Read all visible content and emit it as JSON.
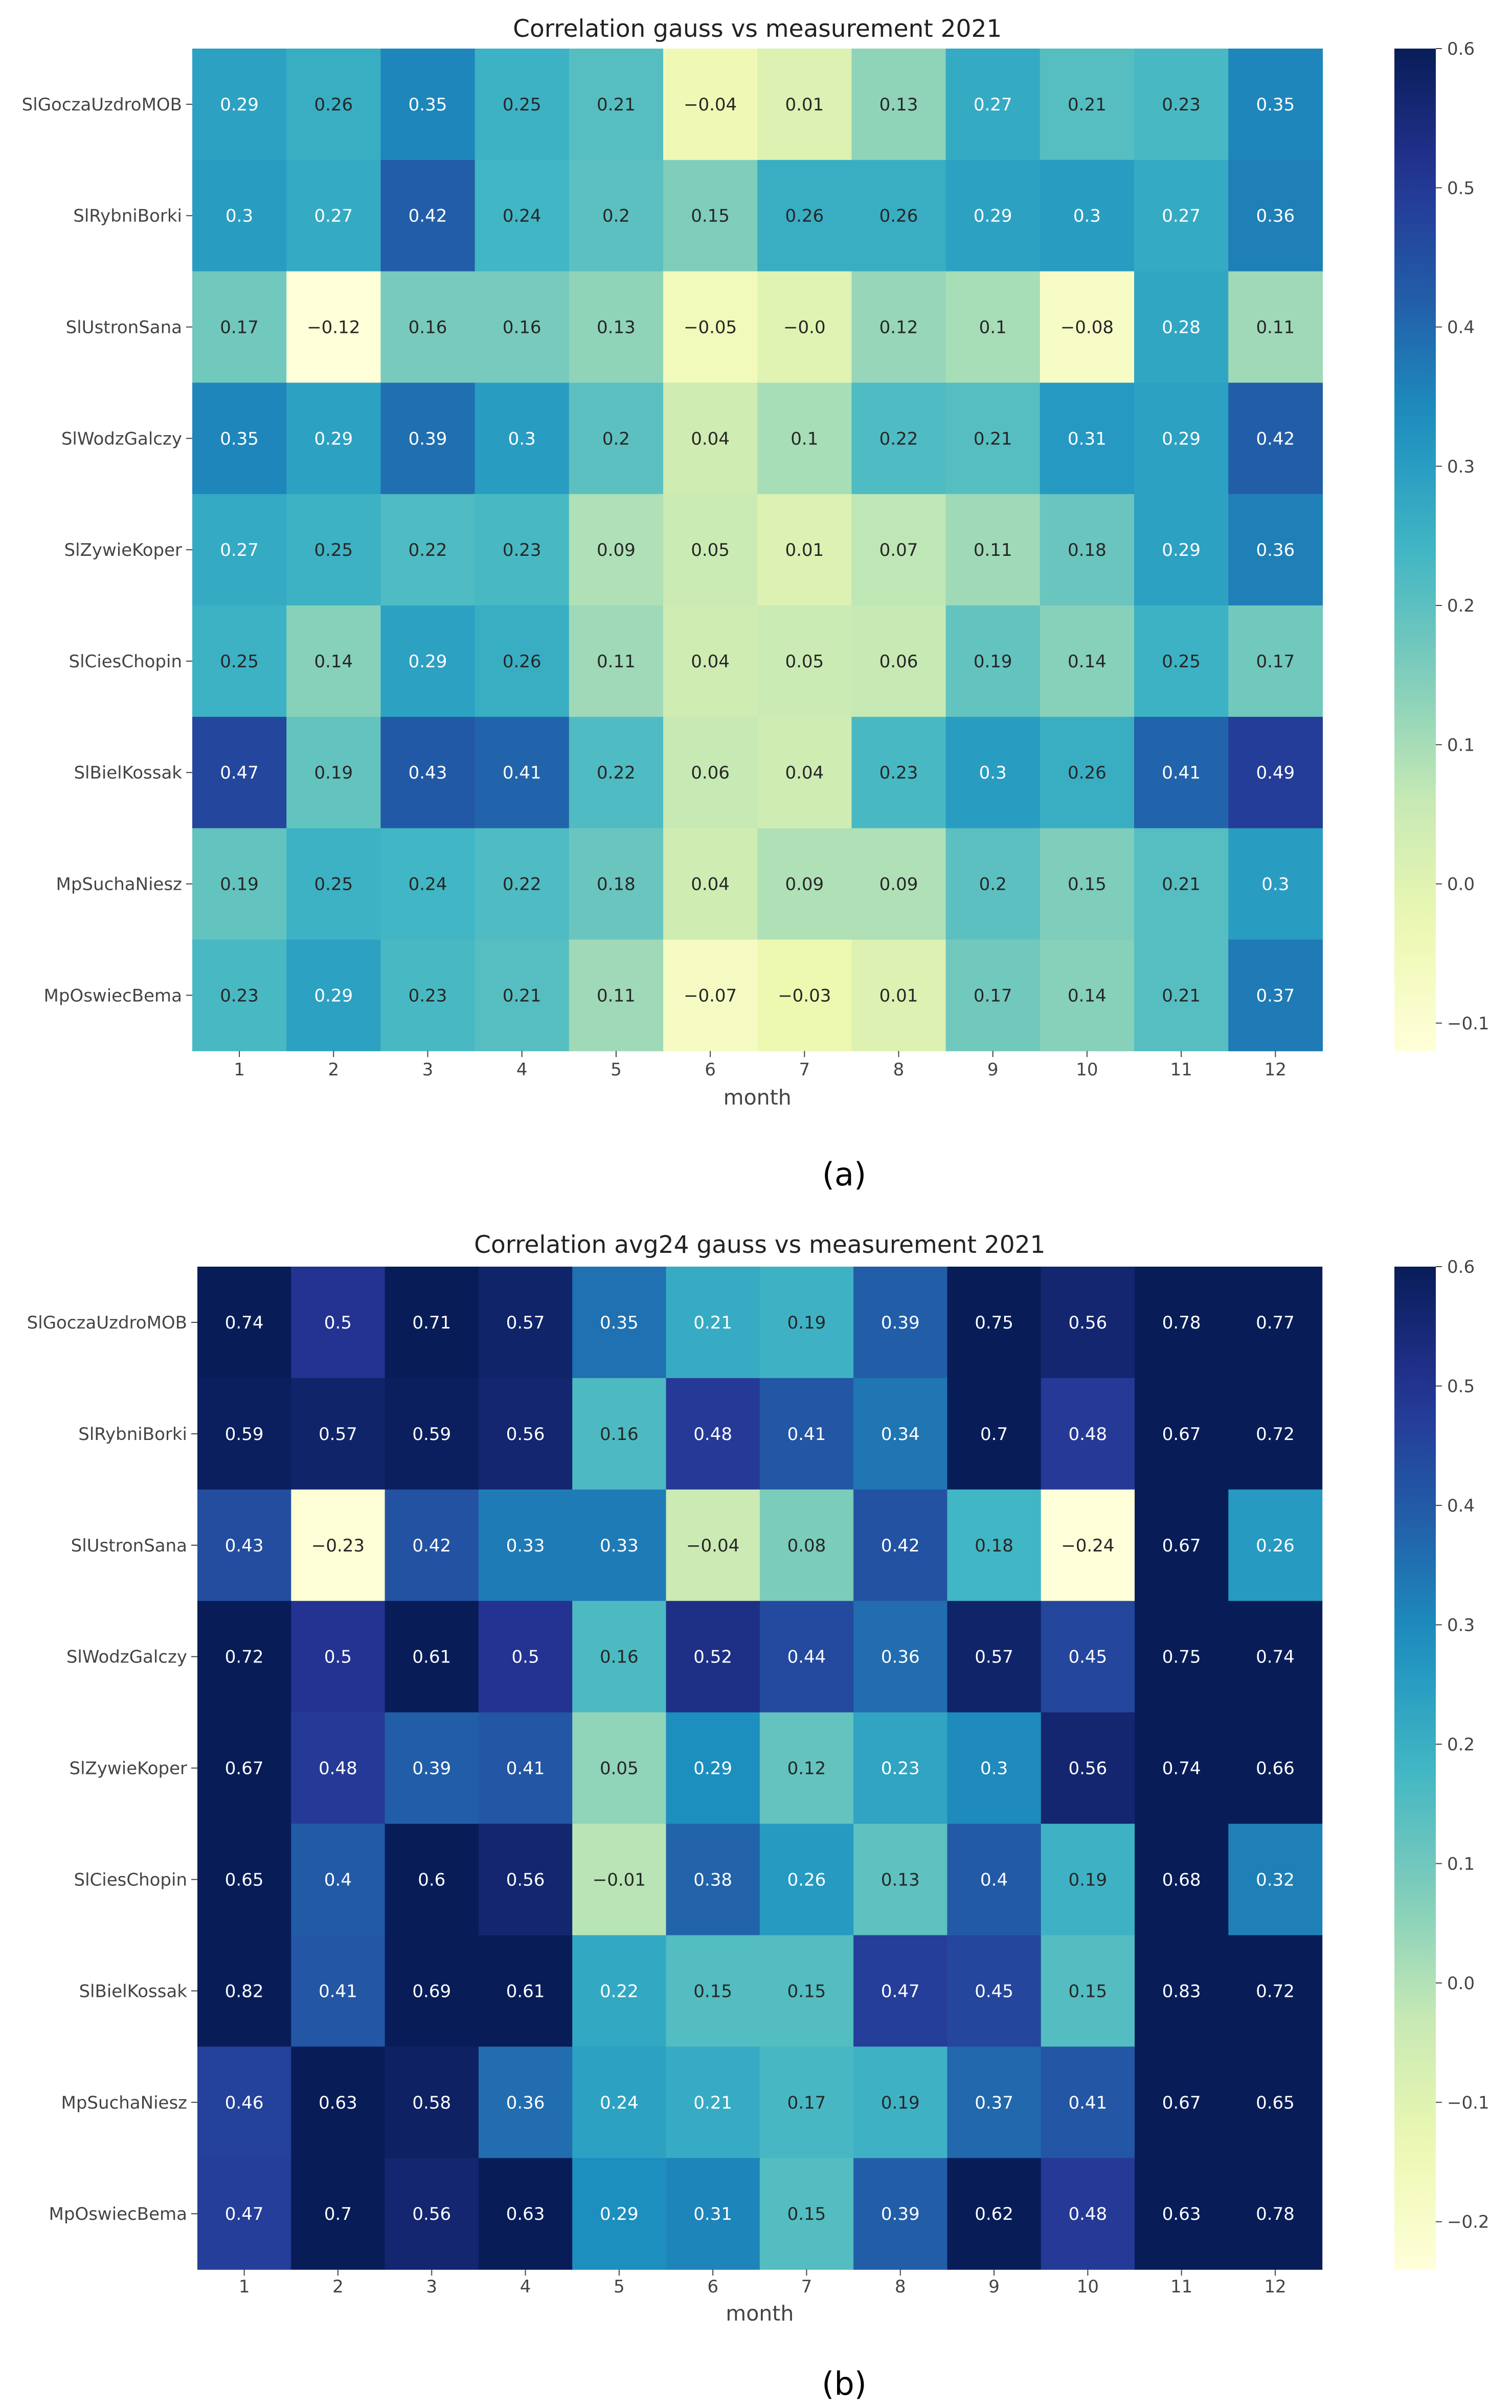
{
  "chart_data": [
    {
      "type": "heatmap",
      "title": "Correlation gauss vs measurement 2021",
      "caption": "(a)",
      "xlabel": "month",
      "ylabel": "",
      "x": [
        "1",
        "2",
        "3",
        "4",
        "5",
        "6",
        "7",
        "8",
        "9",
        "10",
        "11",
        "12"
      ],
      "y": [
        "SlGoczaUzdroMOB",
        "SlRybniBorki",
        "SlUstronSana",
        "SlWodzGalczy",
        "SlZywieKoper",
        "SlCiesChopin",
        "SlBielKossak",
        "MpSuchaNiesz",
        "MpOswiecBema"
      ],
      "values": [
        [
          0.29,
          0.26,
          0.35,
          0.25,
          0.21,
          -0.04,
          0.01,
          0.13,
          0.27,
          0.21,
          0.23,
          0.35
        ],
        [
          0.3,
          0.27,
          0.42,
          0.24,
          0.2,
          0.15,
          0.26,
          0.26,
          0.29,
          0.3,
          0.27,
          0.36
        ],
        [
          0.17,
          -0.12,
          0.16,
          0.16,
          0.13,
          -0.05,
          -0.0,
          0.12,
          0.1,
          -0.08,
          0.28,
          0.11
        ],
        [
          0.35,
          0.29,
          0.39,
          0.3,
          0.2,
          0.04,
          0.1,
          0.22,
          0.21,
          0.31,
          0.29,
          0.42
        ],
        [
          0.27,
          0.25,
          0.22,
          0.23,
          0.09,
          0.05,
          0.01,
          0.07,
          0.11,
          0.18,
          0.29,
          0.36
        ],
        [
          0.25,
          0.14,
          0.29,
          0.26,
          0.11,
          0.04,
          0.05,
          0.06,
          0.19,
          0.14,
          0.25,
          0.17
        ],
        [
          0.47,
          0.19,
          0.43,
          0.41,
          0.22,
          0.06,
          0.04,
          0.23,
          0.3,
          0.26,
          0.41,
          0.49
        ],
        [
          0.19,
          0.25,
          0.24,
          0.22,
          0.18,
          0.04,
          0.09,
          0.09,
          0.2,
          0.15,
          0.21,
          0.3
        ],
        [
          0.23,
          0.29,
          0.23,
          0.21,
          0.11,
          -0.07,
          -0.03,
          0.01,
          0.17,
          0.14,
          0.21,
          0.37
        ]
      ],
      "color_range": [
        -0.12,
        0.6
      ],
      "colorbar_ticks": [
        -0.1,
        0.0,
        0.1,
        0.2,
        0.3,
        0.4,
        0.5,
        0.6
      ],
      "colormap": "YlGnBu"
    },
    {
      "type": "heatmap",
      "title": "Correlation avg24 gauss vs measurement 2021",
      "caption": "(b)",
      "xlabel": "month",
      "ylabel": "",
      "x": [
        "1",
        "2",
        "3",
        "4",
        "5",
        "6",
        "7",
        "8",
        "9",
        "10",
        "11",
        "12"
      ],
      "y": [
        "SlGoczaUzdroMOB",
        "SlRybniBorki",
        "SlUstronSana",
        "SlWodzGalczy",
        "SlZywieKoper",
        "SlCiesChopin",
        "SlBielKossak",
        "MpSuchaNiesz",
        "MpOswiecBema"
      ],
      "values": [
        [
          0.74,
          0.5,
          0.71,
          0.57,
          0.35,
          0.21,
          0.19,
          0.39,
          0.75,
          0.56,
          0.78,
          0.77
        ],
        [
          0.59,
          0.57,
          0.59,
          0.56,
          0.16,
          0.48,
          0.41,
          0.34,
          0.7,
          0.48,
          0.67,
          0.72
        ],
        [
          0.43,
          -0.23,
          0.42,
          0.33,
          0.33,
          -0.04,
          0.08,
          0.42,
          0.18,
          -0.24,
          0.67,
          0.26
        ],
        [
          0.72,
          0.5,
          0.61,
          0.5,
          0.16,
          0.52,
          0.44,
          0.36,
          0.57,
          0.45,
          0.75,
          0.74
        ],
        [
          0.67,
          0.48,
          0.39,
          0.41,
          0.05,
          0.29,
          0.12,
          0.23,
          0.3,
          0.56,
          0.74,
          0.66
        ],
        [
          0.65,
          0.4,
          0.6,
          0.56,
          -0.01,
          0.38,
          0.26,
          0.13,
          0.4,
          0.19,
          0.68,
          0.32
        ],
        [
          0.82,
          0.41,
          0.69,
          0.61,
          0.22,
          0.15,
          0.15,
          0.47,
          0.45,
          0.15,
          0.83,
          0.72
        ],
        [
          0.46,
          0.63,
          0.58,
          0.36,
          0.24,
          0.21,
          0.17,
          0.19,
          0.37,
          0.41,
          0.67,
          0.65
        ],
        [
          0.47,
          0.7,
          0.56,
          0.63,
          0.29,
          0.31,
          0.15,
          0.39,
          0.62,
          0.48,
          0.63,
          0.78
        ]
      ],
      "color_range": [
        -0.24,
        0.6
      ],
      "colorbar_ticks": [
        -0.2,
        -0.1,
        0.0,
        0.1,
        0.2,
        0.3,
        0.4,
        0.5,
        0.6
      ],
      "colormap": "YlGnBu"
    }
  ]
}
